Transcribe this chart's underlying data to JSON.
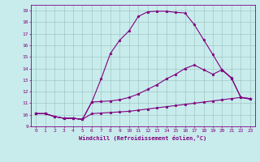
{
  "xlabel": "Windchill (Refroidissement éolien,°C)",
  "bg_color": "#c8ecec",
  "line_color": "#800080",
  "xlim": [
    -0.5,
    23.5
  ],
  "ylim": [
    9.0,
    19.5
  ],
  "xticks": [
    0,
    1,
    2,
    3,
    4,
    5,
    6,
    7,
    8,
    9,
    10,
    11,
    12,
    13,
    14,
    15,
    16,
    17,
    18,
    19,
    20,
    21,
    22,
    23
  ],
  "yticks": [
    9,
    10,
    11,
    12,
    13,
    14,
    15,
    16,
    17,
    18,
    19
  ],
  "line1_x": [
    0,
    1,
    2,
    3,
    4,
    5,
    6,
    7,
    8,
    9,
    10,
    11,
    12,
    13,
    14,
    15,
    16,
    17,
    18,
    19,
    20,
    21,
    22,
    23
  ],
  "line1_y": [
    10.1,
    10.1,
    9.85,
    9.7,
    9.7,
    9.6,
    10.1,
    10.15,
    10.2,
    10.25,
    10.3,
    10.4,
    10.5,
    10.6,
    10.7,
    10.8,
    10.9,
    11.0,
    11.1,
    11.2,
    11.3,
    11.4,
    11.5,
    11.4
  ],
  "line2_x": [
    0,
    1,
    2,
    3,
    4,
    5,
    6,
    7,
    8,
    9,
    10,
    11,
    12,
    13,
    14,
    15,
    16,
    17,
    18,
    19,
    20,
    21,
    22,
    23
  ],
  "line2_y": [
    10.1,
    10.1,
    9.85,
    9.7,
    9.7,
    9.6,
    11.1,
    11.15,
    11.2,
    11.3,
    11.5,
    11.8,
    12.2,
    12.6,
    13.1,
    13.5,
    14.0,
    14.3,
    13.9,
    13.5,
    13.9,
    13.2,
    11.5,
    11.4
  ],
  "line3_x": [
    0,
    1,
    2,
    3,
    4,
    5,
    6,
    7,
    8,
    9,
    10,
    11,
    12,
    13,
    14,
    15,
    16,
    17,
    18,
    19,
    20,
    21,
    22,
    23
  ],
  "line3_y": [
    10.1,
    10.1,
    9.85,
    9.7,
    9.7,
    9.6,
    11.1,
    13.1,
    15.3,
    16.45,
    17.25,
    18.5,
    18.9,
    18.95,
    18.95,
    18.85,
    18.8,
    17.8,
    16.5,
    15.2,
    13.85,
    13.15,
    11.5,
    11.35
  ],
  "grid_color": "#9bbfbf",
  "marker": "*",
  "markersize": 2.5,
  "linewidth": 0.8,
  "tick_labelsize": 4.5,
  "xlabel_fontsize": 5.0
}
